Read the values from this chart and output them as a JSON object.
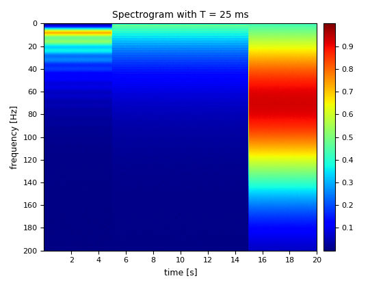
{
  "title": "Spectrogram with T = 25 ms",
  "xlabel": "time [s]",
  "ylabel": "frequency [Hz]",
  "time_range": [
    0,
    20
  ],
  "freq_range": [
    0,
    200
  ],
  "colorbar_ticks": [
    0.1,
    0.2,
    0.3,
    0.4,
    0.5,
    0.6,
    0.7,
    0.8,
    0.9
  ],
  "cmap": "jet",
  "vmin": 0,
  "vmax": 1,
  "segment1_end": 5.0,
  "segment2_end": 15.0,
  "segment3_end": 20.0,
  "seg1_fund_hz": 8.0,
  "seg1_sigma_hz": 3.0,
  "seg1_decay": 0.045,
  "seg2_fund_hz": 1.0,
  "seg2_sigma_hz": 0.3,
  "seg2_decay": 0.03,
  "seg3_peak_hz": 70.0,
  "seg3_sigma_hz": 55.0,
  "seg3_amplitude": 0.92,
  "xticks": [
    2,
    4,
    6,
    8,
    10,
    12,
    14,
    16,
    18,
    20
  ],
  "yticks": [
    0,
    20,
    40,
    60,
    80,
    100,
    120,
    140,
    160,
    180,
    200
  ],
  "figsize": [
    5.6,
    4.2
  ],
  "dpi": 100
}
